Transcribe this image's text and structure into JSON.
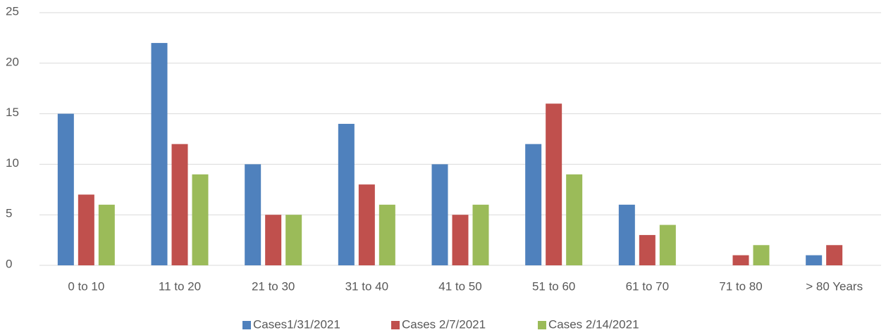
{
  "chart_data": {
    "type": "bar",
    "categories": [
      "0 to 10",
      "11 to 20",
      "21 to 30",
      "31 to 40",
      "41 to 50",
      "51 to 60",
      "61 to 70",
      "71 to 80",
      "> 80 Years"
    ],
    "series": [
      {
        "name": "Cases1/31/2021",
        "color": "#4f81bd",
        "values": [
          15,
          22,
          10,
          14,
          10,
          12,
          6,
          0,
          1
        ]
      },
      {
        "name": "Cases 2/7/2021",
        "color": "#c0504d",
        "values": [
          7,
          12,
          5,
          8,
          5,
          16,
          3,
          1,
          2
        ]
      },
      {
        "name": "Cases 2/14/2021",
        "color": "#9bbb59",
        "values": [
          6,
          9,
          5,
          6,
          6,
          9,
          4,
          2,
          0
        ]
      }
    ],
    "ylim": [
      0,
      25
    ],
    "yticks": [
      0,
      5,
      10,
      15,
      20,
      25
    ],
    "grid": true,
    "legend": "bottom"
  }
}
